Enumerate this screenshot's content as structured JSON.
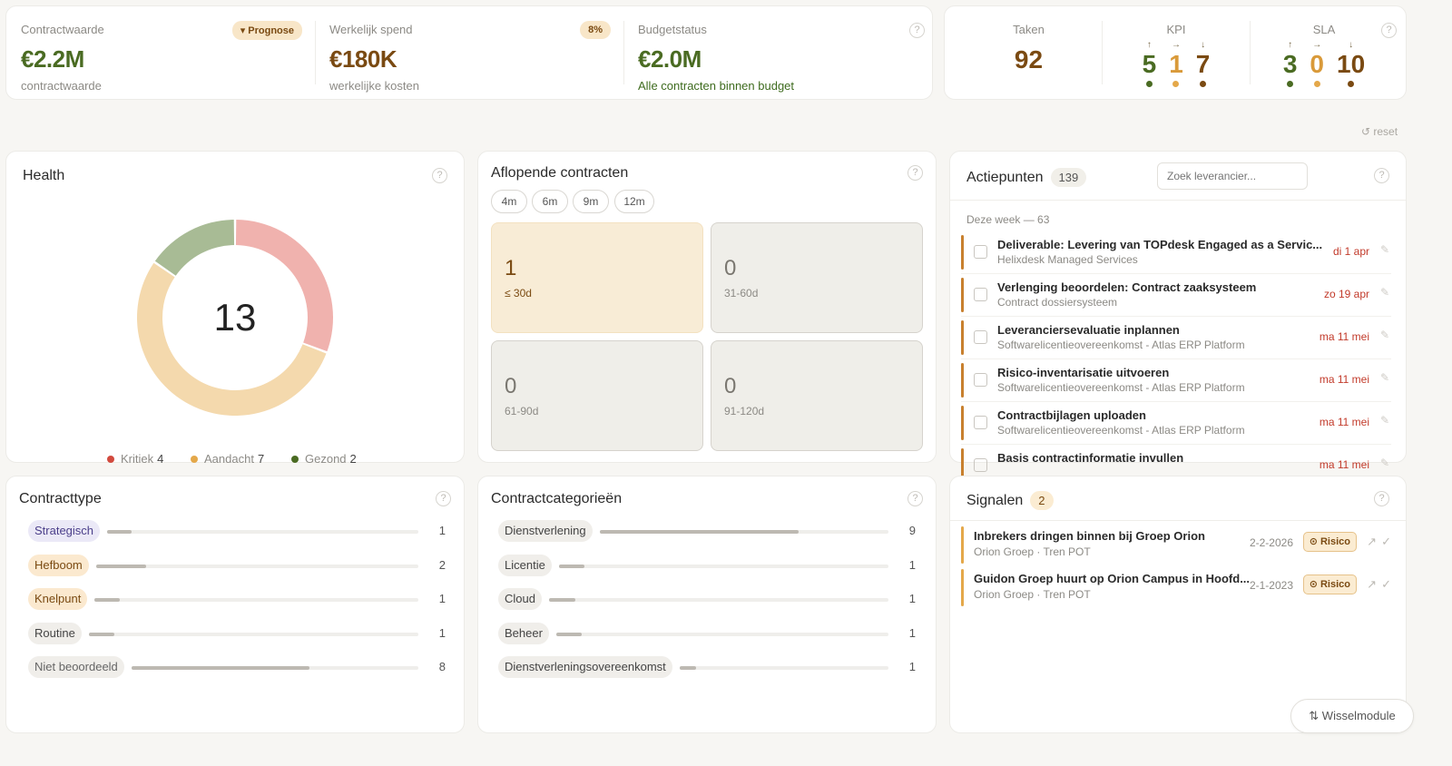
{
  "kpis": {
    "contract_value": {
      "label": "Contractwaarde",
      "value": "€2.2M",
      "sub": "contractwaarde",
      "badge": "Prognose"
    },
    "actual_spend": {
      "label": "Werkelijk spend",
      "value": "€180K",
      "sub": "werkelijke kosten",
      "badge": "8%"
    },
    "budget": {
      "label": "Budgetstatus",
      "value": "€2.0M",
      "sub": "Alle contracten binnen budget"
    }
  },
  "metrics": {
    "tasks": {
      "label": "Taken",
      "value": "92"
    },
    "kpi": {
      "label": "KPI",
      "values": [
        "5",
        "1",
        "7"
      ],
      "arrows": [
        "↑",
        "→",
        "↓"
      ]
    },
    "sla": {
      "label": "SLA",
      "values": [
        "3",
        "0",
        "10"
      ],
      "arrows": [
        "↑",
        "→",
        "↓"
      ]
    }
  },
  "reset_label": "reset",
  "health": {
    "title": "Health",
    "total": "13",
    "segments": [
      {
        "label": "Kritiek",
        "count": 4,
        "color": "#f0b2ae",
        "dot": "#d24a3e"
      },
      {
        "label": "Aandacht",
        "count": 7,
        "color": "#f4d9ad",
        "dot": "#e4a84a"
      },
      {
        "label": "Gezond",
        "count": 2,
        "color": "#a8bb95",
        "dot": "#4a6b22"
      }
    ]
  },
  "expiring": {
    "title": "Aflopende contracten",
    "ranges": [
      "4m",
      "6m",
      "9m",
      "12m"
    ],
    "tiles": [
      {
        "count": "1",
        "label": "≤ 30d"
      },
      {
        "count": "0",
        "label": "31-60d"
      },
      {
        "count": "0",
        "label": "61-90d"
      },
      {
        "count": "0",
        "label": "91-120d"
      }
    ]
  },
  "actions": {
    "title": "Actiepunten",
    "count": "139",
    "search_placeholder": "Zoek leverancier...",
    "week_label": "Deze week — 63",
    "items": [
      {
        "title": "Deliverable: Levering van TOPdesk Engaged as a Servic...",
        "sub": "Helixdesk Managed Services",
        "date": "di 1 apr"
      },
      {
        "title": "Verlenging beoordelen: Contract zaaksysteem",
        "sub": "Contract dossiersysteem",
        "date": "zo 19 apr"
      },
      {
        "title": "Leveranciersevaluatie inplannen",
        "sub": "Softwarelicentieovereenkomst - Atlas ERP Platform",
        "date": "ma 11 mei"
      },
      {
        "title": "Risico-inventarisatie uitvoeren",
        "sub": "Softwarelicentieovereenkomst - Atlas ERP Platform",
        "date": "ma 11 mei"
      },
      {
        "title": "Contractbijlagen uploaden",
        "sub": "Softwarelicentieovereenkomst - Atlas ERP Platform",
        "date": "ma 11 mei"
      },
      {
        "title": "Basis contractinformatie invullen",
        "sub": "",
        "date": "ma 11 mei"
      }
    ]
  },
  "contract_types": {
    "title": "Contracttype",
    "items": [
      {
        "label": "Strategisch",
        "count": "1",
        "value": 1,
        "bg": "#ebe9f7",
        "fg": "#4b3f8a"
      },
      {
        "label": "Hefboom",
        "count": "2",
        "value": 2,
        "bg": "#fbe9cf",
        "fg": "#7a4a12"
      },
      {
        "label": "Knelpunt",
        "count": "1",
        "value": 1,
        "bg": "#fbe9cf",
        "fg": "#7a4a12"
      },
      {
        "label": "Routine",
        "count": "1",
        "value": 1,
        "bg": "#f0eeea",
        "fg": "#444444"
      },
      {
        "label": "Niet beoordeeld",
        "count": "8",
        "value": 8,
        "bg": "#f0eeea",
        "fg": "#666666"
      }
    ]
  },
  "categories": {
    "title": "Contractcategorieën",
    "items": [
      {
        "label": "Dienstverlening",
        "count": "9",
        "value": 9
      },
      {
        "label": "Licentie",
        "count": "1",
        "value": 1
      },
      {
        "label": "Cloud",
        "count": "1",
        "value": 1
      },
      {
        "label": "Beheer",
        "count": "1",
        "value": 1
      },
      {
        "label": "Dienstverleningsovereenkomst",
        "count": "1",
        "value": 1
      }
    ]
  },
  "signals": {
    "title": "Signalen",
    "count": "2",
    "items": [
      {
        "title": "Inbrekers dringen binnen bij Groep Orion",
        "sub": "Orion Groep · Tren POT",
        "date": "2-2-2026",
        "tag": "Risico"
      },
      {
        "title": "Guidon Groep huurt op Orion Campus in Hoofd...",
        "sub": "Orion Groep · Tren POT",
        "date": "2-1-2023",
        "tag": "Risico"
      }
    ]
  },
  "switch_module_label": "Wisselmodule"
}
